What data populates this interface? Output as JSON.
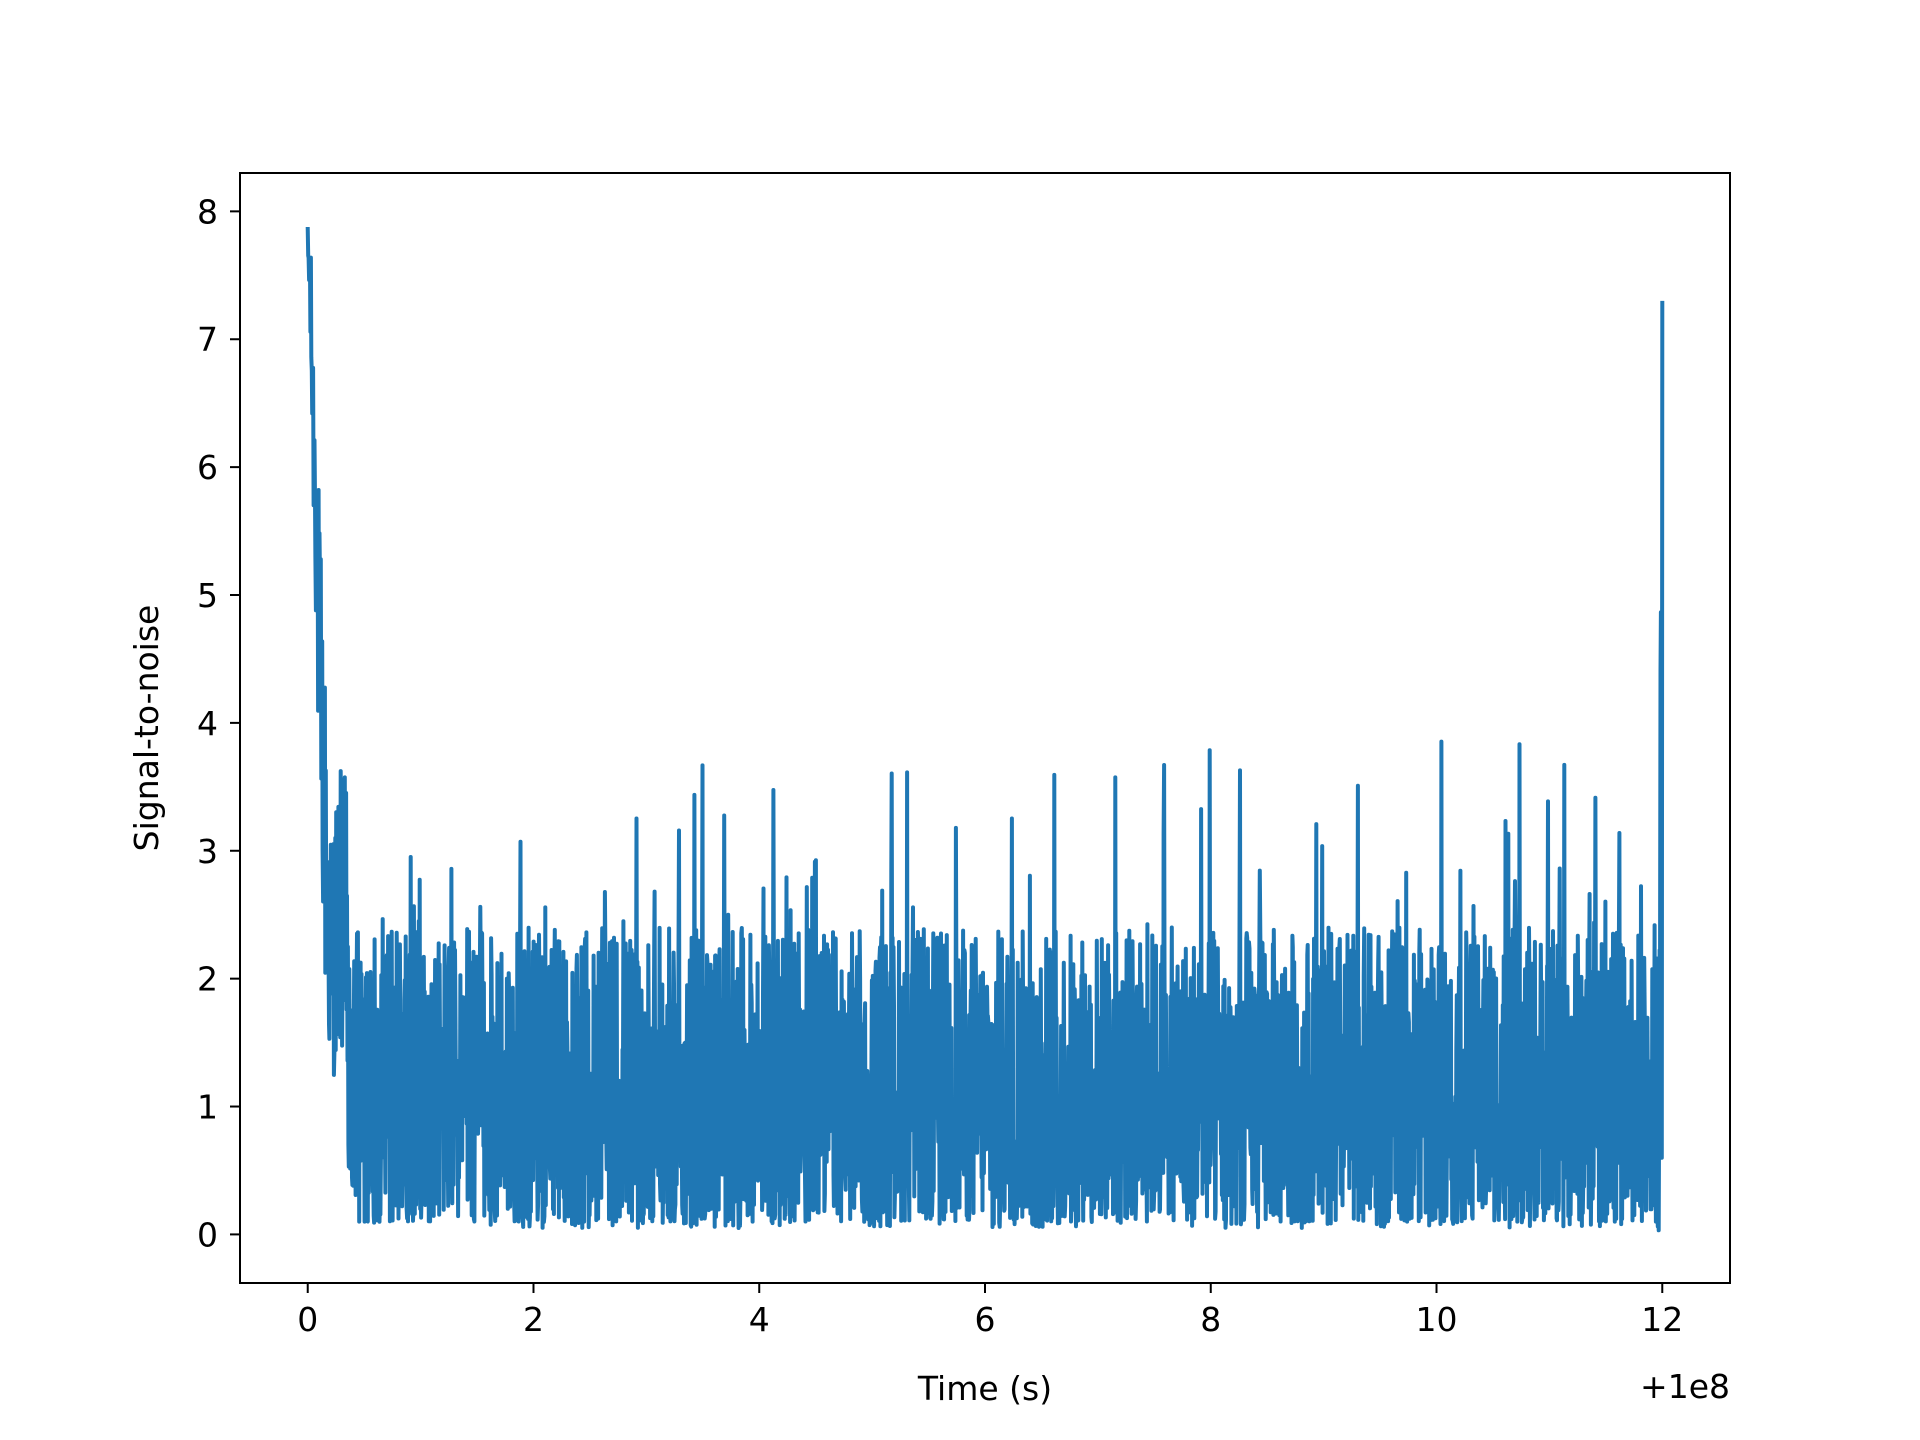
{
  "chart_data": {
    "type": "line",
    "title": "",
    "xlabel": "Time (s)",
    "ylabel": "Signal-to-noise",
    "x_offset_label": "+1e8",
    "xlim": [
      -0.6,
      12.6
    ],
    "ylim": [
      -0.38,
      8.3
    ],
    "x_ticks": [
      0,
      2,
      4,
      6,
      8,
      10,
      12
    ],
    "y_ticks": [
      0,
      1,
      2,
      3,
      4,
      5,
      6,
      7,
      8
    ],
    "x_tick_labels": [
      "0",
      "2",
      "4",
      "6",
      "8",
      "10",
      "12"
    ],
    "y_tick_labels": [
      "0",
      "1",
      "2",
      "3",
      "4",
      "5",
      "6",
      "7",
      "8"
    ],
    "grid": false,
    "legend": "none",
    "series": [
      {
        "color": "#1f77b4",
        "x_range": [
          0,
          12
        ],
        "n_points": 3000,
        "envelope": {
          "x": [
            0.0,
            0.02,
            0.05,
            0.08,
            0.1,
            0.13,
            0.16,
            0.2,
            0.3,
            0.5,
            1.0,
            2.2,
            3.7,
            4.5,
            6.5,
            9.55,
            11.4,
            11.95,
            12.0
          ],
          "max": [
            7.9,
            7.9,
            7.0,
            6.4,
            5.8,
            5.0,
            4.3,
            3.2,
            3.7,
            3.0,
            3.3,
            3.35,
            3.8,
            3.6,
            3.85,
            3.92,
            3.82,
            2.4,
            7.3
          ],
          "min": [
            7.3,
            6.5,
            4.8,
            3.5,
            1.9,
            1.2,
            0.3,
            0.1,
            0.1,
            0.1,
            0.05,
            0.05,
            0.05,
            0.05,
            0.05,
            0.05,
            0.05,
            0.1,
            0.6
          ]
        },
        "typical_range": [
          0.1,
          2.4
        ]
      }
    ]
  }
}
